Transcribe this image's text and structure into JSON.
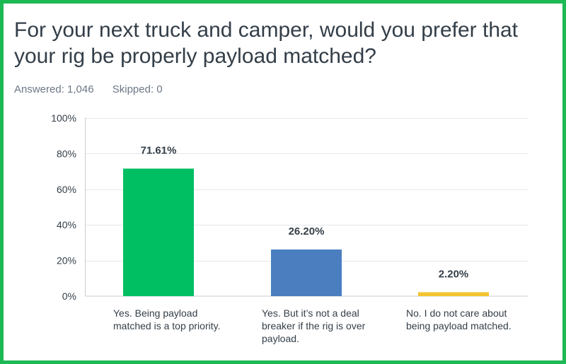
{
  "title": "For your next truck and camper, would you prefer that your rig be properly payload matched?",
  "answered": "Answered: 1,046",
  "skipped": "Skipped: 0",
  "colors": {
    "frame": "#1db954",
    "bar1": "#00bf63",
    "bar2": "#4a7ebf",
    "bar3": "#f4c430"
  },
  "chart_data": {
    "type": "bar",
    "categories": [
      "Yes. Being payload matched is a top priority.",
      "Yes. But it’s not a deal breaker if the rig is over payload.",
      "No. I do not care about being payload matched."
    ],
    "values": [
      71.61,
      26.2,
      2.2
    ],
    "value_labels": [
      "71.61%",
      "26.20%",
      "2.20%"
    ],
    "colors": [
      "#00bf63",
      "#4a7ebf",
      "#f4c430"
    ],
    "y_ticks": [
      "0%",
      "20%",
      "40%",
      "60%",
      "80%",
      "100%"
    ],
    "ylim": [
      0,
      100
    ],
    "grid": true,
    "xlabel": "",
    "ylabel": ""
  }
}
